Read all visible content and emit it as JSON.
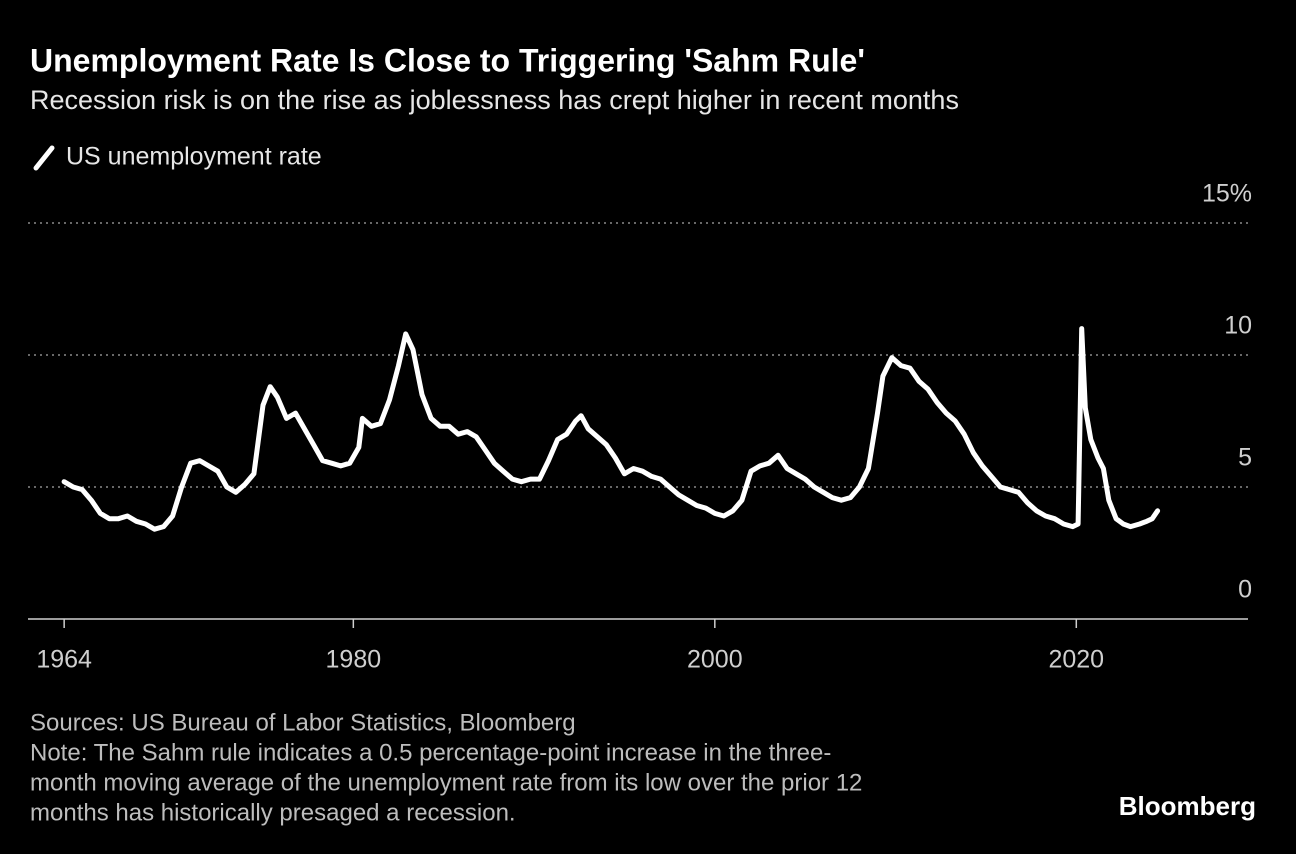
{
  "chart_data": {
    "type": "line",
    "title": "Unemployment Rate Is Close to Triggering 'Sahm Rule'",
    "subtitle": "Recession risk is on the rise as joblessness has crept higher in recent months",
    "x": [
      1964.0,
      1964.5,
      1965.0,
      1965.5,
      1966.0,
      1966.5,
      1967.0,
      1967.5,
      1968.0,
      1968.5,
      1969.0,
      1969.5,
      1970.0,
      1970.5,
      1971.0,
      1971.5,
      1972.0,
      1972.5,
      1973.0,
      1973.5,
      1974.0,
      1974.5,
      1975.0,
      1975.4,
      1975.8,
      1976.3,
      1976.8,
      1977.3,
      1977.8,
      1978.3,
      1978.8,
      1979.3,
      1979.8,
      1980.3,
      1980.5,
      1981.0,
      1981.5,
      1982.0,
      1982.5,
      1982.9,
      1983.3,
      1983.8,
      1984.3,
      1984.8,
      1985.3,
      1985.8,
      1986.3,
      1986.8,
      1987.3,
      1987.8,
      1988.3,
      1988.8,
      1989.3,
      1989.8,
      1990.3,
      1990.8,
      1991.3,
      1991.8,
      1992.3,
      1992.6,
      1993.0,
      1993.5,
      1994.0,
      1994.5,
      1995.0,
      1995.5,
      1996.0,
      1996.5,
      1997.0,
      1997.5,
      1998.0,
      1998.5,
      1999.0,
      1999.5,
      2000.0,
      2000.5,
      2001.0,
      2001.5,
      2002.0,
      2002.5,
      2003.0,
      2003.5,
      2004.0,
      2004.5,
      2005.0,
      2005.5,
      2006.0,
      2006.5,
      2007.0,
      2007.5,
      2008.0,
      2008.5,
      2009.0,
      2009.3,
      2009.8,
      2010.3,
      2010.8,
      2011.3,
      2011.8,
      2012.3,
      2012.8,
      2013.3,
      2013.8,
      2014.3,
      2014.8,
      2015.3,
      2015.8,
      2016.3,
      2016.8,
      2017.3,
      2017.8,
      2018.3,
      2018.8,
      2019.3,
      2019.8,
      2020.1,
      2020.3,
      2020.5,
      2020.8,
      2021.2,
      2021.5,
      2021.8,
      2022.2,
      2022.6,
      2023.0,
      2023.5,
      2023.9,
      2024.2,
      2024.5
    ],
    "series": [
      {
        "name": "US unemployment rate",
        "color": "#ffffff",
        "values": [
          5.2,
          5.0,
          4.9,
          4.5,
          4.0,
          3.8,
          3.8,
          3.9,
          3.7,
          3.6,
          3.4,
          3.5,
          3.9,
          5.0,
          5.9,
          6.0,
          5.8,
          5.6,
          5.0,
          4.8,
          5.1,
          5.5,
          8.1,
          8.8,
          8.4,
          7.6,
          7.8,
          7.2,
          6.6,
          6.0,
          5.9,
          5.8,
          5.9,
          6.5,
          7.6,
          7.3,
          7.4,
          8.3,
          9.6,
          10.8,
          10.2,
          8.5,
          7.6,
          7.3,
          7.3,
          7.0,
          7.1,
          6.9,
          6.4,
          5.9,
          5.6,
          5.3,
          5.2,
          5.3,
          5.3,
          6.0,
          6.8,
          7.0,
          7.5,
          7.7,
          7.2,
          6.9,
          6.6,
          6.1,
          5.5,
          5.7,
          5.6,
          5.4,
          5.3,
          5.0,
          4.7,
          4.5,
          4.3,
          4.2,
          4.0,
          3.9,
          4.1,
          4.5,
          5.6,
          5.8,
          5.9,
          6.2,
          5.7,
          5.5,
          5.3,
          5.0,
          4.8,
          4.6,
          4.5,
          4.6,
          5.0,
          5.7,
          7.8,
          9.2,
          9.9,
          9.6,
          9.5,
          9.0,
          8.7,
          8.2,
          7.8,
          7.5,
          7.0,
          6.3,
          5.8,
          5.4,
          5.0,
          4.9,
          4.8,
          4.4,
          4.1,
          3.9,
          3.8,
          3.6,
          3.5,
          3.6,
          11.0,
          8.0,
          6.8,
          6.1,
          5.7,
          4.5,
          3.8,
          3.6,
          3.5,
          3.6,
          3.7,
          3.8,
          4.1
        ]
      }
    ],
    "xlim": [
      1962,
      2029.5
    ],
    "xticks": [
      1964,
      1980,
      2000,
      2020
    ],
    "ylim": [
      0,
      15
    ],
    "yticks": [
      0,
      5,
      10,
      {
        "value": 15,
        "label": "15%"
      }
    ],
    "grid": true,
    "source": "Sources: US Bureau of Labor Statistics, Bloomberg",
    "note_lines": [
      "Note: The Sahm rule indicates a 0.5 percentage-point increase in the three-",
      "month moving average of the unemployment rate from its low over the prior 12",
      "months has historically presaged a recession."
    ],
    "brand": "Bloomberg"
  }
}
